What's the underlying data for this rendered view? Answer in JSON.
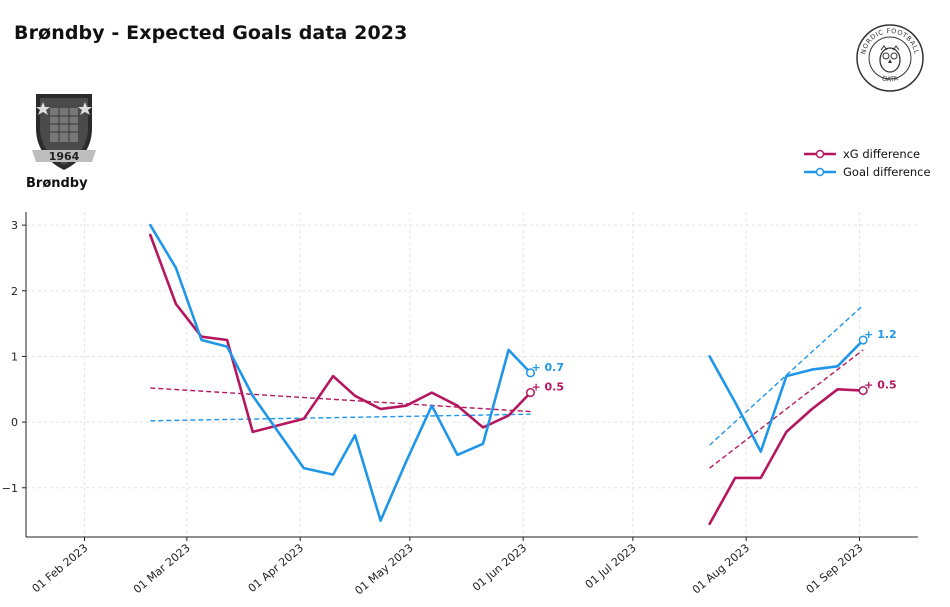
{
  "header": {
    "title": "Brøndby - Expected Goals data 2023",
    "team_name": "Brøndby",
    "crest_year": "1964",
    "logo_text_top": "NORDIC FOOTBALL",
    "logo_text_bottom": "DATA"
  },
  "colors": {
    "xg": "#b5175f",
    "goal": "#1f96e8",
    "grid": "#e3e3e3",
    "axis": "#222222"
  },
  "chart_data": {
    "type": "line",
    "title": "Brøndby - Expected Goals data 2023",
    "xlabel": "",
    "ylabel": "",
    "ylim": [
      -1.75,
      3.2
    ],
    "xlim": [
      "2023-01-16",
      "2023-09-17"
    ],
    "x_ticks": [
      "2023-02-01",
      "2023-03-01",
      "2023-04-01",
      "2023-05-01",
      "2023-06-01",
      "2023-07-01",
      "2023-08-01",
      "2023-09-01"
    ],
    "x_tick_labels": [
      "01 Feb 2023",
      "01 Mar 2023",
      "01 Apr 2023",
      "01 May 2023",
      "01 Jun 2023",
      "01 Jul 2023",
      "01 Aug 2023",
      "01 Sep 2023"
    ],
    "y_ticks": [
      -1,
      0,
      1,
      2,
      3
    ],
    "y_tick_labels": [
      "−1",
      "0",
      "1",
      "2",
      "3"
    ],
    "grid": true,
    "legend_position": "top-right",
    "series": [
      {
        "name": "xG difference",
        "segments": [
          {
            "x": [
              "2023-02-19",
              "2023-02-26",
              "2023-03-05",
              "2023-03-12",
              "2023-03-19",
              "2023-04-02",
              "2023-04-10",
              "2023-04-16",
              "2023-04-23",
              "2023-04-30",
              "2023-05-07",
              "2023-05-14",
              "2023-05-21",
              "2023-05-28",
              "2023-06-03"
            ],
            "y": [
              2.85,
              1.8,
              1.3,
              1.25,
              -0.15,
              0.05,
              0.7,
              0.4,
              0.2,
              0.25,
              0.45,
              0.25,
              -0.08,
              0.1,
              0.45
            ]
          },
          {
            "x": [
              "2023-07-22",
              "2023-07-29",
              "2023-08-05",
              "2023-08-12",
              "2023-08-19",
              "2023-08-26",
              "2023-09-02"
            ],
            "y": [
              -1.55,
              -0.85,
              -0.85,
              -0.15,
              0.2,
              0.5,
              0.48
            ]
          }
        ],
        "end_labels": [
          "0.5",
          "0.5"
        ],
        "trend": [
          {
            "x": [
              "2023-02-19",
              "2023-06-03"
            ],
            "y": [
              0.52,
              0.16
            ]
          },
          {
            "x": [
              "2023-07-22",
              "2023-09-02"
            ],
            "y": [
              -0.7,
              1.1
            ]
          }
        ]
      },
      {
        "name": "Goal difference",
        "segments": [
          {
            "x": [
              "2023-02-19",
              "2023-02-26",
              "2023-03-05",
              "2023-03-12",
              "2023-03-19",
              "2023-04-02",
              "2023-04-10",
              "2023-04-16",
              "2023-04-23",
              "2023-04-30",
              "2023-05-07",
              "2023-05-14",
              "2023-05-21",
              "2023-05-28",
              "2023-06-03"
            ],
            "y": [
              3.0,
              2.35,
              1.25,
              1.15,
              0.4,
              -0.7,
              -0.8,
              -0.2,
              -1.5,
              -0.6,
              0.25,
              -0.5,
              -0.33,
              1.1,
              0.75
            ]
          },
          {
            "x": [
              "2023-07-22",
              "2023-07-29",
              "2023-08-05",
              "2023-08-12",
              "2023-08-19",
              "2023-08-26",
              "2023-09-02"
            ],
            "y": [
              1.0,
              0.3,
              -0.45,
              0.7,
              0.8,
              0.85,
              1.25
            ]
          }
        ],
        "end_labels": [
          "0.7",
          "1.2"
        ],
        "trend": [
          {
            "x": [
              "2023-02-19",
              "2023-06-03"
            ],
            "y": [
              0.02,
              0.12
            ]
          },
          {
            "x": [
              "2023-07-22",
              "2023-09-02"
            ],
            "y": [
              -0.35,
              1.78
            ]
          }
        ]
      }
    ]
  }
}
